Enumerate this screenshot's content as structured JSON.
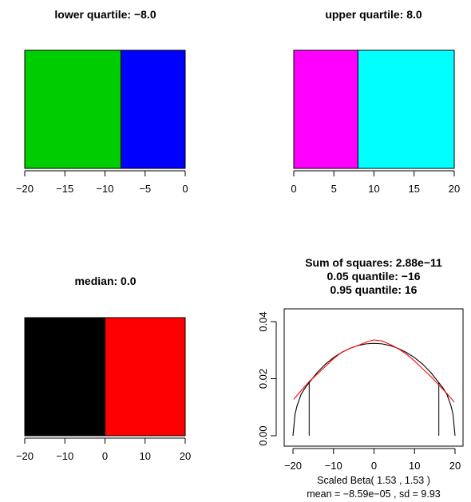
{
  "chart_data": [
    {
      "type": "bar",
      "title": "lower quartile: −8.0",
      "segments": [
        {
          "from": -20,
          "to": -8,
          "color": "#00cd00"
        },
        {
          "from": -8,
          "to": 0,
          "color": "#0000ff"
        }
      ],
      "xlim": [
        -20,
        0
      ],
      "xticks": [
        -20,
        -15,
        -10,
        -5,
        0
      ],
      "xtick_labels": [
        "−20",
        "−15",
        "−10",
        "−5",
        "0"
      ]
    },
    {
      "type": "bar",
      "title": "upper quartile: 8.0",
      "segments": [
        {
          "from": 0,
          "to": 8,
          "color": "#ff00ff"
        },
        {
          "from": 8,
          "to": 20,
          "color": "#00ffff"
        }
      ],
      "xlim": [
        0,
        20
      ],
      "xticks": [
        0,
        5,
        10,
        15,
        20
      ],
      "xtick_labels": [
        "0",
        "5",
        "10",
        "15",
        "20"
      ]
    },
    {
      "type": "bar",
      "title": "median: 0.0",
      "segments": [
        {
          "from": -20,
          "to": 0,
          "color": "#000000"
        },
        {
          "from": 0,
          "to": 20,
          "color": "#ff0000"
        }
      ],
      "xlim": [
        -20,
        20
      ],
      "xticks": [
        -20,
        -10,
        0,
        10,
        20
      ],
      "xtick_labels": [
        "−20",
        "−10",
        "0",
        "10",
        "20"
      ]
    },
    {
      "type": "line",
      "title_lines": [
        "Sum of squares: 2.88e−11",
        "0.05 quantile: −16",
        "0.95 quantile: 16"
      ],
      "xlabel": "Scaled Beta( 1.53 , 1.53 )",
      "sublabel": "mean =  −8.59e−05 , sd =  9.93",
      "xlim": [
        -20,
        20
      ],
      "ylim": [
        0,
        0.04
      ],
      "xticks": [
        -20,
        -10,
        0,
        10,
        20
      ],
      "xtick_labels": [
        "−20",
        "−10",
        "0",
        "10",
        "20"
      ],
      "yticks": [
        0,
        0.02,
        0.04
      ],
      "ytick_labels": [
        "0.00",
        "0.02",
        "0.04"
      ],
      "quantile_lines": [
        -16,
        16
      ],
      "series": [
        {
          "color": "#000000",
          "x": [
            -20,
            -19.5,
            -19,
            -18,
            -17,
            -16,
            -14,
            -12,
            -10,
            -8,
            -6,
            -4,
            -2,
            0,
            2,
            4,
            6,
            8,
            10,
            12,
            14,
            16,
            17,
            18,
            19,
            19.5,
            20
          ],
          "y": [
            0,
            0.0075,
            0.0105,
            0.0145,
            0.0168,
            0.0186,
            0.0222,
            0.0251,
            0.0274,
            0.0292,
            0.0306,
            0.0316,
            0.0322,
            0.0324,
            0.0322,
            0.0316,
            0.0306,
            0.0292,
            0.0274,
            0.0251,
            0.0222,
            0.0186,
            0.0168,
            0.0145,
            0.0105,
            0.0075,
            0
          ]
        },
        {
          "color": "#ff0000",
          "x": [
            -19.8,
            -18,
            -16,
            -14,
            -12,
            -10,
            -8,
            -6,
            -4,
            -2,
            0,
            2,
            4,
            6,
            8,
            10,
            12,
            14,
            16,
            18,
            19.8
          ],
          "y": [
            0.0128,
            0.0158,
            0.019,
            0.0216,
            0.0243,
            0.027,
            0.0292,
            0.0306,
            0.0316,
            0.0328,
            0.0336,
            0.0332,
            0.032,
            0.0305,
            0.0286,
            0.0262,
            0.0235,
            0.0208,
            0.0178,
            0.0148,
            0.0118
          ]
        }
      ]
    }
  ]
}
